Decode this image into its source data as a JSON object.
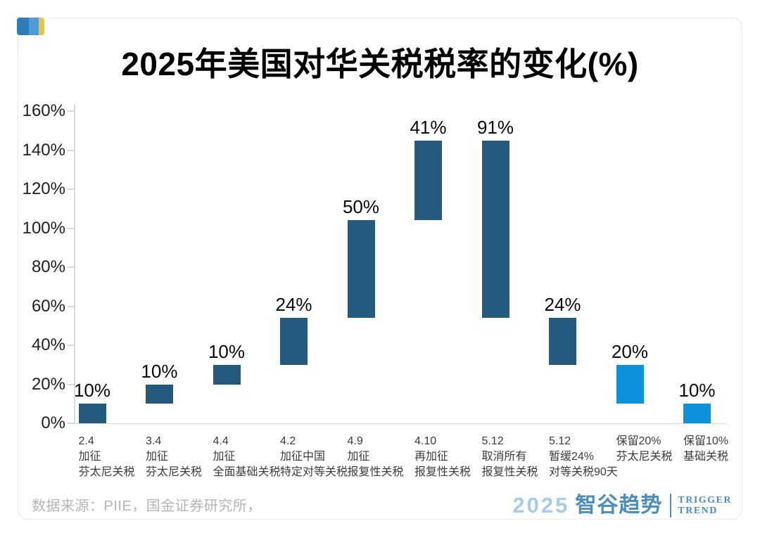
{
  "brand_chip": {
    "colors": [
      "#2e7cb9",
      "#4f9bd3",
      "#e6c44c"
    ]
  },
  "chart_data": {
    "type": "bar",
    "subtype": "waterfall",
    "title": "2025年美国对华关税税率的变化(%)",
    "xlabel": "",
    "ylabel": "",
    "ylim": [
      0,
      160
    ],
    "ytick_step": 20,
    "ytick_labels": [
      "0%",
      "20%",
      "40%",
      "60%",
      "80%",
      "100%",
      "120%",
      "140%",
      "160%"
    ],
    "grid": false,
    "legend": null,
    "axis_color": "#d9d9d9",
    "colors": {
      "dark": "#25597d",
      "blue": "#0d91db"
    },
    "categories": [
      "2.4 加征芬太尼关税",
      "3.4 加征芬太尼关税",
      "4.4 加征全面基础关税",
      "4.2 加征中国特定对等关税",
      "4.9 加征报复性关税",
      "4.10 再加征报复性关税",
      "5.12 取消所有报复性关税",
      "5.12 暂缓24%对等关税90天",
      "保留20% 芬太尼关税",
      "保留10% 基础关税"
    ],
    "bars": [
      {
        "label_lines": [
          "2.4",
          "加征",
          "芬太尼关税"
        ],
        "start": 0,
        "end": 10,
        "change": 10,
        "label": "10%",
        "color_key": "dark"
      },
      {
        "label_lines": [
          "3.4",
          "加征",
          "芬太尼关税"
        ],
        "start": 10,
        "end": 20,
        "change": 10,
        "label": "10%",
        "color_key": "dark"
      },
      {
        "label_lines": [
          "4.4",
          "加征",
          "全面基础关税"
        ],
        "start": 20,
        "end": 30,
        "change": 10,
        "label": "10%",
        "color_key": "dark"
      },
      {
        "label_lines": [
          "4.2",
          "加征中国",
          "特定对等关税"
        ],
        "start": 30,
        "end": 54,
        "change": 24,
        "label": "24%",
        "color_key": "dark"
      },
      {
        "label_lines": [
          "4.9",
          "加征",
          "报复性关税"
        ],
        "start": 54,
        "end": 104,
        "change": 50,
        "label": "50%",
        "color_key": "dark"
      },
      {
        "label_lines": [
          "4.10",
          "再加征",
          "报复性关税"
        ],
        "start": 104,
        "end": 145,
        "change": 41,
        "label": "41%",
        "color_key": "dark"
      },
      {
        "label_lines": [
          "5.12",
          "取消所有",
          "报复性关税"
        ],
        "start": 145,
        "end": 54,
        "change": -91,
        "label": "91%",
        "color_key": "dark"
      },
      {
        "label_lines": [
          "5.12",
          "暂缓24%",
          "对等关税90天"
        ],
        "start": 54,
        "end": 30,
        "change": -24,
        "label": "24%",
        "color_key": "dark"
      },
      {
        "label_lines": [
          "保留20%",
          "芬太尼关税"
        ],
        "start": 10,
        "end": 30,
        "change": 20,
        "label": "20%",
        "color_key": "blue"
      },
      {
        "label_lines": [
          "保留10%",
          "基础关税"
        ],
        "start": 0,
        "end": 10,
        "change": 10,
        "label": "10%",
        "color_key": "blue"
      }
    ]
  },
  "footer": {
    "source": "数据来源：PIIE，国金证券研究所，"
  },
  "logo": {
    "year": "2025",
    "brand": "智谷趋势",
    "tagline": [
      "TRIGGER",
      "TREND"
    ],
    "brand_color": "#4a8ec2",
    "year_color": "#a9cbe5"
  }
}
